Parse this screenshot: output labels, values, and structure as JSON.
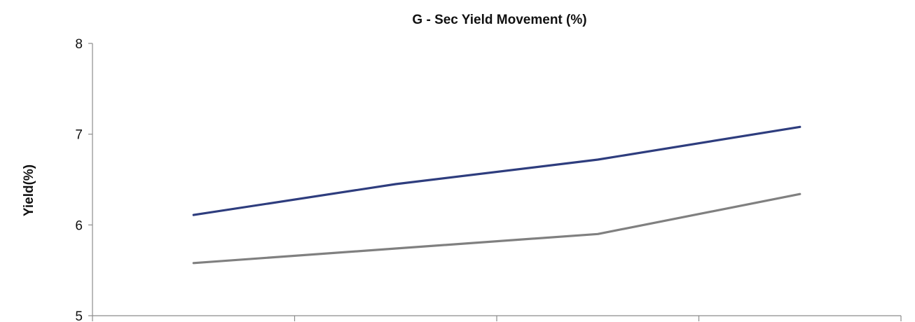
{
  "chart_data": {
    "type": "line",
    "title": "G - Sec Yield Movement (%)",
    "xlabel": "",
    "ylabel": "Yield(%)",
    "ylim": [
      5,
      8
    ],
    "yticks": [
      "5",
      "6",
      "7",
      "8"
    ],
    "categories": [
      "",
      "",
      "",
      ""
    ],
    "series": [
      {
        "values": [
          6.11,
          6.45,
          6.72,
          7.08
        ],
        "color": "#2e3d7e"
      },
      {
        "values": [
          5.58,
          5.74,
          5.9,
          6.34
        ],
        "color": "#808080"
      }
    ],
    "grid": false,
    "legend": "none"
  }
}
